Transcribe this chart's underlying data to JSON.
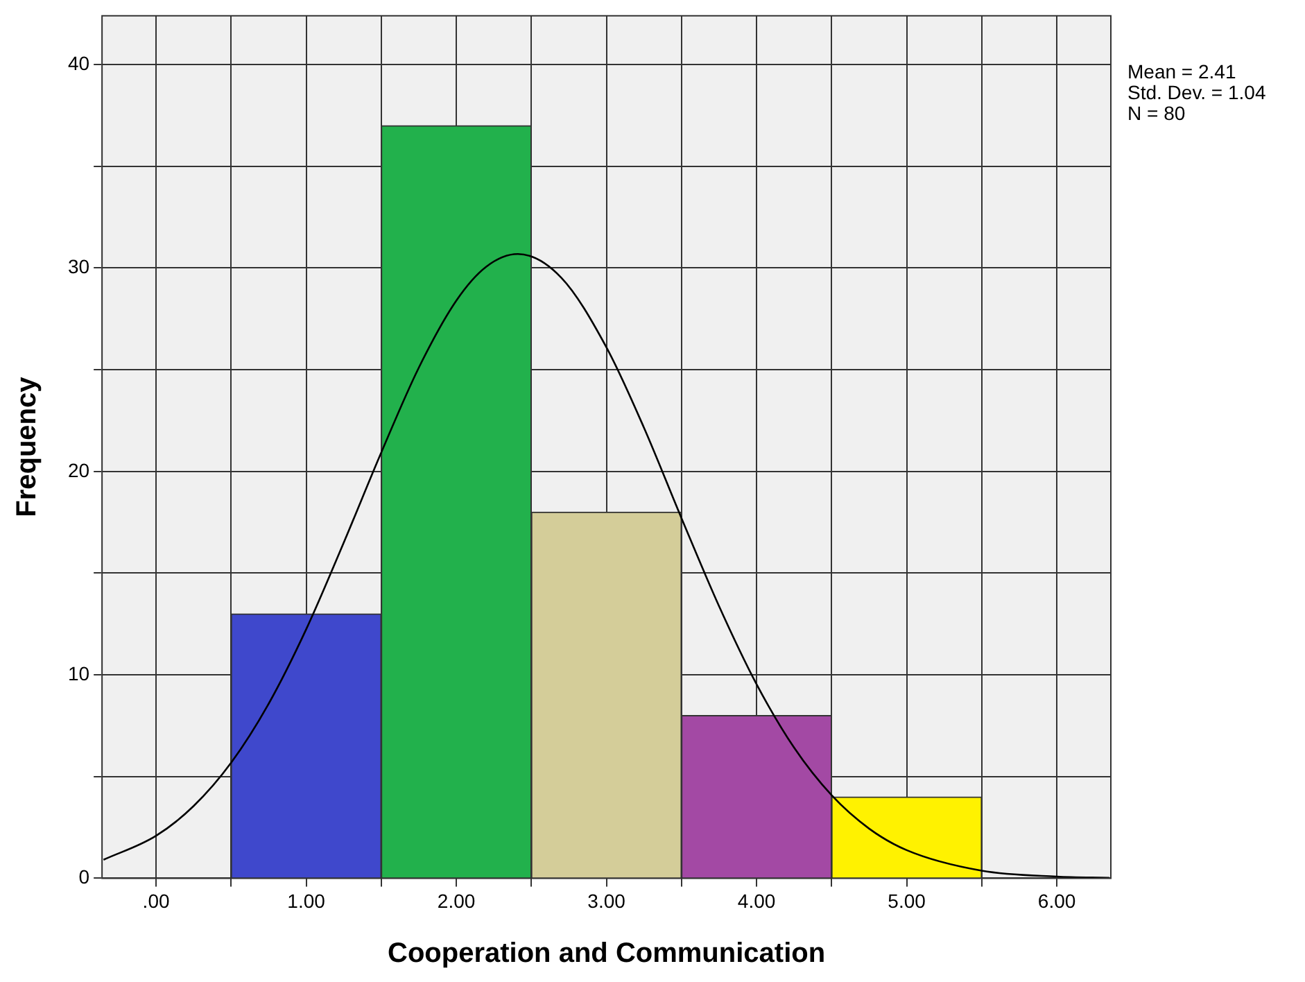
{
  "chart_data": {
    "type": "histogram",
    "xlabel": "Cooperation and Communication",
    "ylabel": "Frequency",
    "bins": [
      0.5,
      1.5,
      2.5,
      3.5,
      4.5,
      5.5
    ],
    "values": [
      13,
      37,
      18,
      8,
      4
    ],
    "colors": [
      "#3f48cc",
      "#22b14c",
      "#d4cd99",
      "#a349a4",
      "#fff200"
    ],
    "series": [
      {
        "type": "line",
        "color": "#000000",
        "x": [
          -0.35,
          0,
          0.25,
          0.5,
          0.75,
          1,
          1.25,
          1.5,
          1.75,
          2,
          2.2,
          2.41,
          2.7,
          3,
          3.25,
          3.5,
          3.75,
          4,
          4.25,
          4.5,
          4.75,
          5,
          5.5,
          6,
          6.35
        ],
        "values": [
          0.91,
          2.09,
          3.55,
          5.68,
          8.58,
          12.24,
          16.5,
          20.93,
          25.1,
          28.4,
          30.07,
          30.69,
          29.52,
          26.1,
          22.15,
          17.7,
          13.38,
          9.54,
          6.42,
          4.08,
          2.44,
          1.38,
          0.37,
          0.08,
          0.02
        ]
      }
    ],
    "xlim": [
      -0.36,
      6.36
    ],
    "ylim": [
      0,
      42.4
    ],
    "xticks": [
      {
        "value": 0,
        "label": ".00"
      },
      {
        "value": 0.5,
        "label": null
      },
      {
        "value": 1,
        "label": "1.00"
      },
      {
        "value": 1.5,
        "label": null
      },
      {
        "value": 2,
        "label": "2.00"
      },
      {
        "value": 2.5,
        "label": null
      },
      {
        "value": 3,
        "label": "3.00"
      },
      {
        "value": 3.5,
        "label": null
      },
      {
        "value": 4,
        "label": "4.00"
      },
      {
        "value": 4.5,
        "label": null
      },
      {
        "value": 5,
        "label": "5.00"
      },
      {
        "value": 5.5,
        "label": null
      },
      {
        "value": 6,
        "label": "6.00"
      }
    ],
    "yticks": [
      0,
      {
        "value": 5,
        "label": null
      },
      10,
      {
        "value": 15,
        "label": null
      },
      20,
      {
        "value": 25,
        "label": null
      },
      30,
      {
        "value": 35,
        "label": null
      },
      40
    ],
    "grid": true,
    "marker": "none",
    "annotations": [
      "Mean = 2.41",
      "Std. Dev. = 1.04",
      "N = 80"
    ]
  }
}
